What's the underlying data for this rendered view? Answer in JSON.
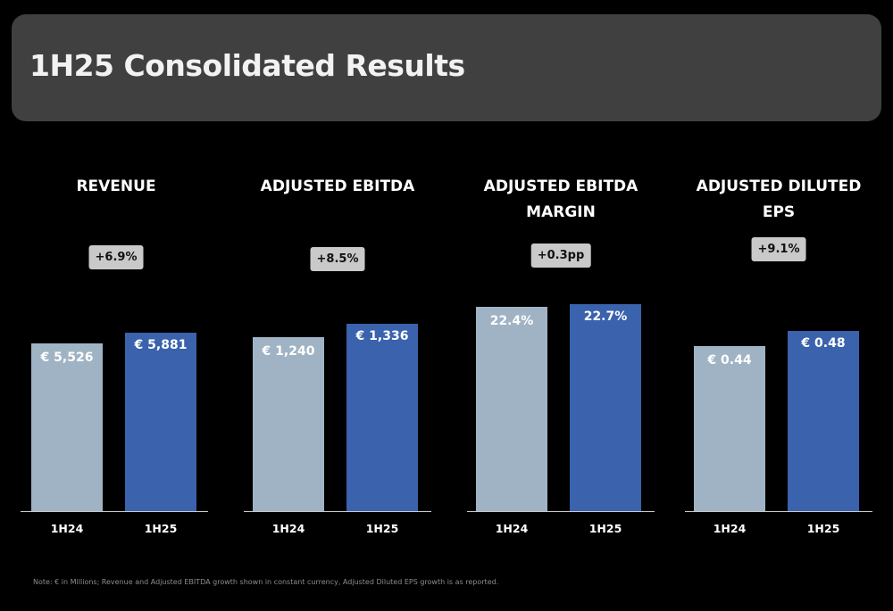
{
  "title": "1H25 Consolidated Results",
  "footnote": "Note: € in Millions; Revenue and Adjusted EBITDA growth shown in constant currency, Adjusted Diluted EPS growth is as reported.",
  "colors": {
    "prior_period": "#a0b3c4",
    "current_period": "#3a62ad",
    "header": "#404040"
  },
  "chart_data": [
    {
      "type": "bar",
      "title": "REVENUE",
      "growth": "+6.9%",
      "categories": [
        "1H24",
        "1H25"
      ],
      "values": [
        5526,
        5881
      ],
      "value_labels": [
        "€ 5,526",
        "€ 5,881"
      ]
    },
    {
      "type": "bar",
      "title": "ADJUSTED EBITDA",
      "growth": "+8.5%",
      "categories": [
        "1H24",
        "1H25"
      ],
      "values": [
        1240,
        1336
      ],
      "value_labels": [
        "€ 1,240",
        "€ 1,336"
      ]
    },
    {
      "type": "bar",
      "title": "ADJUSTED EBITDA MARGIN",
      "growth": "+0.3pp",
      "categories": [
        "1H24",
        "1H25"
      ],
      "values": [
        22.4,
        22.7
      ],
      "value_labels": [
        "22.4%",
        "22.7%"
      ]
    },
    {
      "type": "bar",
      "title": "ADJUSTED DILUTED EPS",
      "growth": "+9.1%",
      "categories": [
        "1H24",
        "1H25"
      ],
      "values": [
        0.44,
        0.48
      ],
      "value_labels": [
        "€ 0.44",
        "€ 0.48"
      ]
    }
  ]
}
